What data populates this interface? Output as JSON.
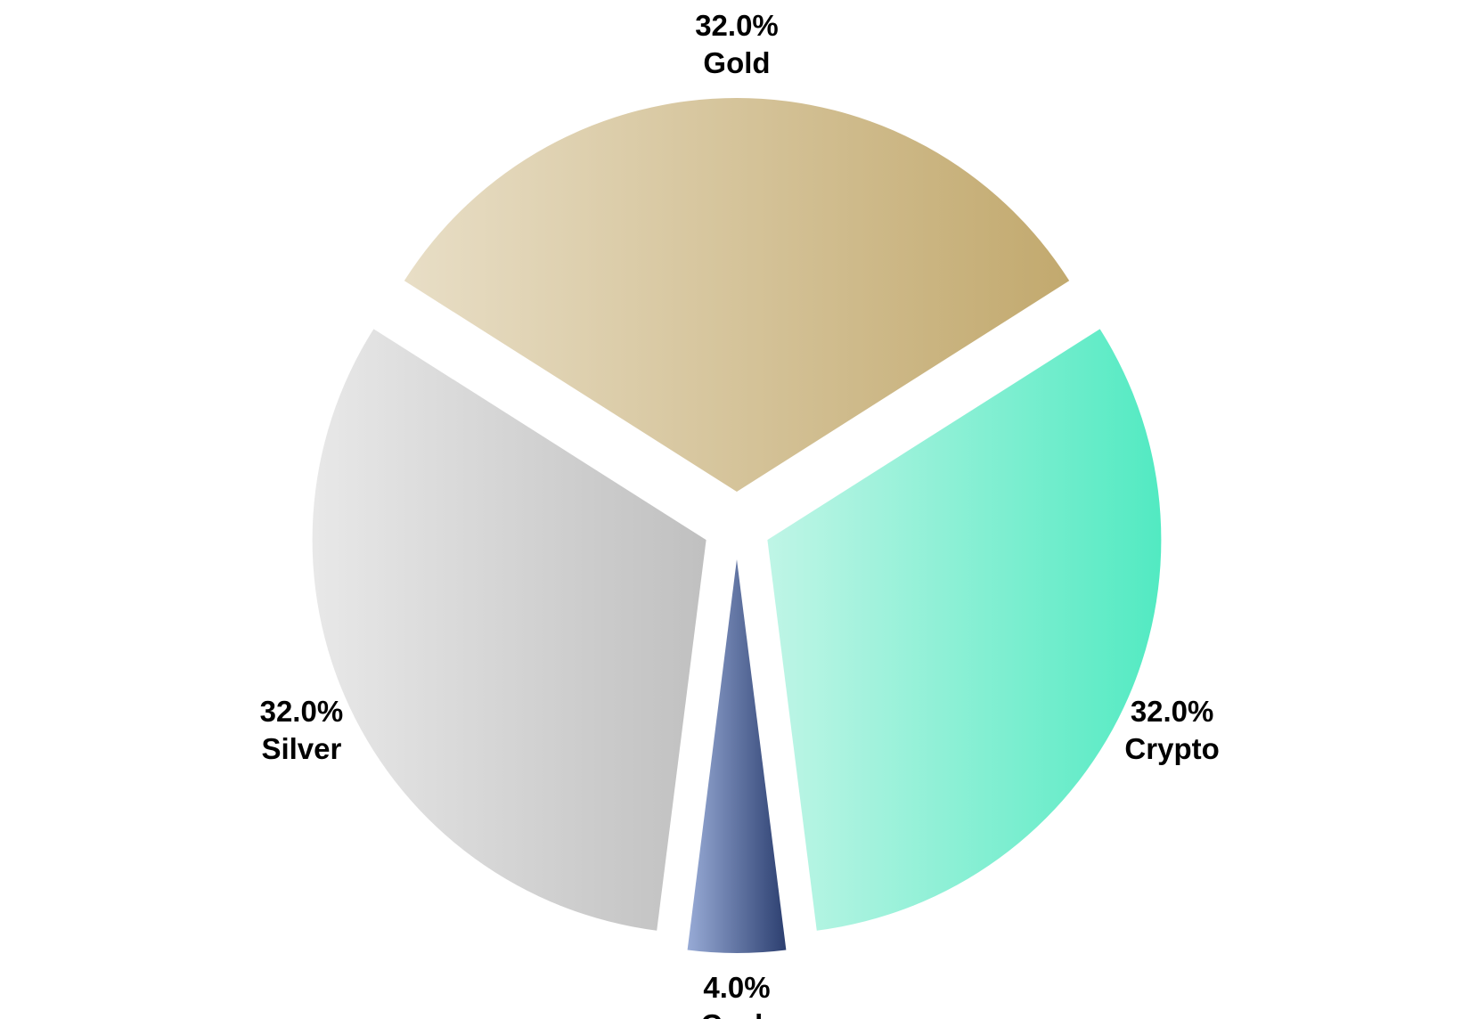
{
  "chart_data": {
    "type": "pie",
    "title": "",
    "slices": [
      {
        "label": "Gold",
        "value": 32.0,
        "pct_text": "32.0%",
        "color_start": "#e8dec6",
        "color_end": "#c2a96e"
      },
      {
        "label": "Crypto",
        "value": 32.0,
        "pct_text": "32.0%",
        "color_start": "#bff5e6",
        "color_end": "#52eac2"
      },
      {
        "label": "Cash",
        "value": 4.0,
        "pct_text": "4.0%",
        "color_start": "#98abd6",
        "color_end": "#2c3f70"
      },
      {
        "label": "Silver",
        "value": 32.0,
        "pct_text": "32.0%",
        "color_start": "#e8e8e8",
        "color_end": "#c0c0c0"
      }
    ],
    "legend": "none",
    "exploded": true
  }
}
